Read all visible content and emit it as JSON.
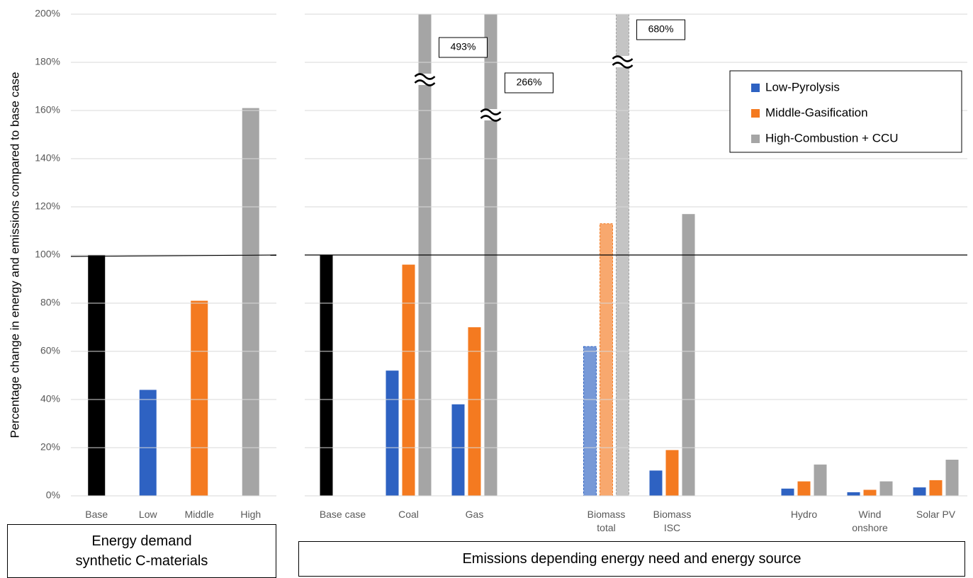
{
  "chart_data": [
    {
      "type": "bar",
      "ylabel": "Percentage change in energy and emissions compared to base case",
      "xlabel": "Energy demand synthetic C-materials",
      "categories": [
        "Base",
        "Low",
        "Middle",
        "High"
      ],
      "values": [
        100,
        44,
        81,
        161
      ],
      "colors": [
        "#000000",
        "#2e62c2",
        "#f47a20",
        "#a5a5a5"
      ],
      "ylim": [
        0,
        200
      ],
      "yticks": [
        {
          "value": 0,
          "label": "0%"
        },
        {
          "value": 20,
          "label": "20%"
        },
        {
          "value": 40,
          "label": "40%"
        },
        {
          "value": 60,
          "label": "60%"
        },
        {
          "value": 80,
          "label": "80%"
        },
        {
          "value": 100,
          "label": "100%"
        },
        {
          "value": 120,
          "label": "120%"
        },
        {
          "value": 140,
          "label": "140%"
        },
        {
          "value": 160,
          "label": "160%"
        },
        {
          "value": 180,
          "label": "180%"
        },
        {
          "value": 200,
          "label": "200%"
        }
      ],
      "grid": true,
      "hline": 100
    },
    {
      "type": "grouped-bar",
      "xlabel": "Emissions depending energy need and energy source",
      "categories": [
        "Base case",
        "Coal",
        "Gas",
        null,
        "Biomass total",
        "Biomass ISC",
        null,
        "Hydro",
        "Wind onshore",
        "Solar PV"
      ],
      "series": [
        {
          "color": "#000000",
          "values": [
            100,
            null,
            null,
            null,
            null,
            null,
            null,
            null,
            null,
            null
          ]
        },
        {
          "name": "Low-Pyrolysis",
          "color": "#2e62c2",
          "values": [
            null,
            52,
            38,
            null,
            62,
            10.5,
            null,
            3,
            1.5,
            3.5
          ]
        },
        {
          "name": "Middle-Gasification",
          "color": "#f47a20",
          "values": [
            null,
            96,
            70,
            null,
            113,
            19,
            null,
            6,
            2.5,
            6.5
          ]
        },
        {
          "name": "High-Combustion + CCU",
          "color": "#a5a5a5",
          "values": [
            null,
            493,
            266,
            null,
            680,
            117,
            null,
            13,
            6,
            15
          ],
          "value_labels": [
            null,
            "493%",
            "266%",
            null,
            "680%",
            null,
            null,
            null,
            null,
            null
          ]
        }
      ],
      "ylim": [
        0,
        200
      ],
      "yticks": [
        0,
        20,
        40,
        60,
        80,
        100,
        120,
        140,
        160,
        180,
        200
      ],
      "grid": true,
      "hline": 100,
      "legend": "upper-right"
    }
  ]
}
